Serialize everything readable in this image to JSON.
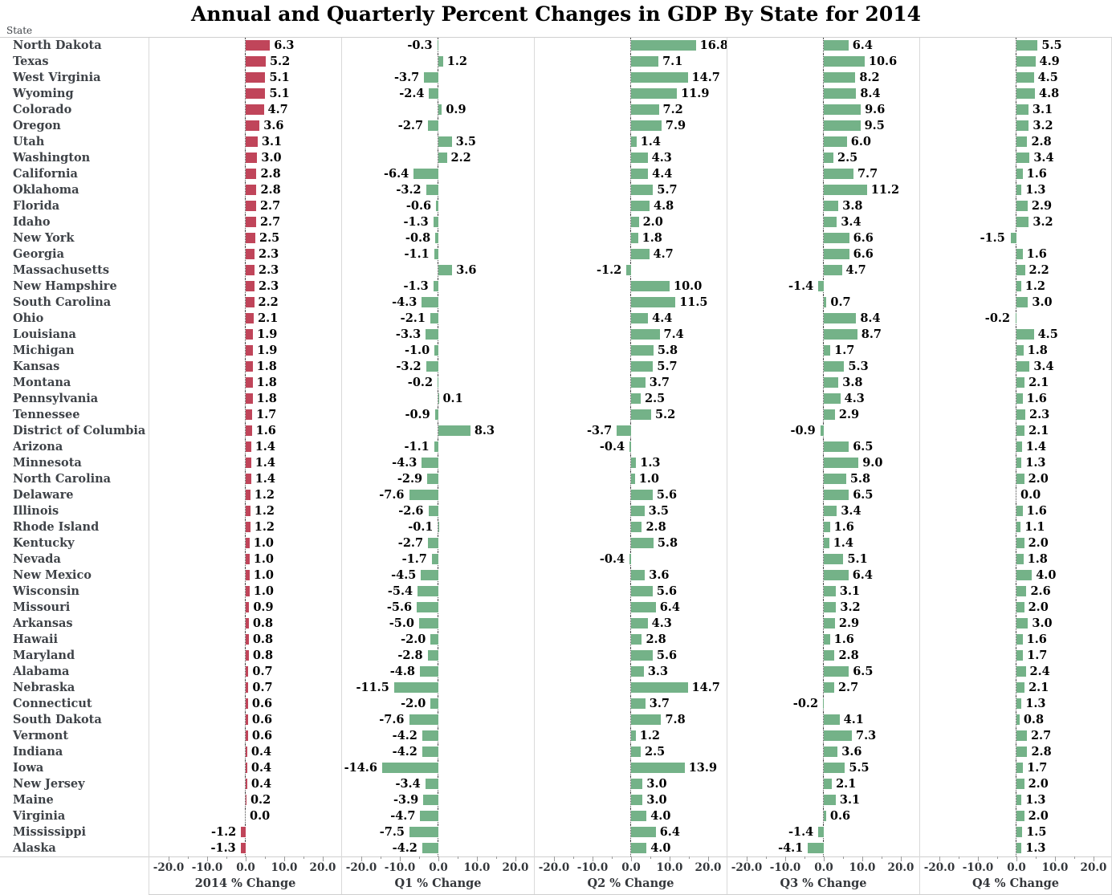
{
  "title": "Annual and Quarterly Percent Changes in GDP By State for 2014",
  "row_header": "State",
  "colors": {
    "annual_bar": "#c0455a",
    "quarterly_bar": "#74b288",
    "grid_line": "#d9d9d9",
    "zero_line": "#4a4a4a"
  },
  "panels": [
    {
      "caption": "2014 % Change"
    },
    {
      "caption": "Q1 % Change"
    },
    {
      "caption": "Q2 % Change"
    },
    {
      "caption": "Q3 % Change"
    },
    {
      "caption": "Q4 % Change"
    }
  ],
  "axis": {
    "tick_labels": [
      "-20.0",
      "-10.0",
      "0.0",
      "10.0",
      "20.0"
    ],
    "major_ticks": [
      -20,
      -10,
      0,
      10,
      20
    ],
    "minor_ticks": [
      -15,
      -5,
      5,
      15
    ],
    "min": -25,
    "max": 25
  },
  "chart_data": {
    "type": "bar",
    "orientation": "horizontal",
    "title": "Annual and Quarterly Percent Changes in GDP By State for 2014",
    "xlabel": "% Change",
    "ylabel": "State",
    "xlim": [
      -25,
      25
    ],
    "grid": false,
    "categories": [
      "North Dakota",
      "Texas",
      "West Virginia",
      "Wyoming",
      "Colorado",
      "Oregon",
      "Utah",
      "Washington",
      "California",
      "Oklahoma",
      "Florida",
      "Idaho",
      "New York",
      "Georgia",
      "Massachusetts",
      "New Hampshire",
      "South Carolina",
      "Ohio",
      "Louisiana",
      "Michigan",
      "Kansas",
      "Montana",
      "Pennsylvania",
      "Tennessee",
      "District of Columbia",
      "Arizona",
      "Minnesota",
      "North Carolina",
      "Delaware",
      "Illinois",
      "Rhode Island",
      "Kentucky",
      "Nevada",
      "New Mexico",
      "Wisconsin",
      "Missouri",
      "Arkansas",
      "Hawaii",
      "Maryland",
      "Alabama",
      "Nebraska",
      "Connecticut",
      "South Dakota",
      "Vermont",
      "Indiana",
      "Iowa",
      "New Jersey",
      "Maine",
      "Virginia",
      "Mississippi",
      "Alaska"
    ],
    "series": [
      {
        "name": "2014 % Change",
        "values": [
          6.3,
          5.2,
          5.1,
          5.1,
          4.7,
          3.6,
          3.1,
          3.0,
          2.8,
          2.8,
          2.7,
          2.7,
          2.5,
          2.3,
          2.3,
          2.3,
          2.2,
          2.1,
          1.9,
          1.9,
          1.8,
          1.8,
          1.8,
          1.7,
          1.6,
          1.4,
          1.4,
          1.4,
          1.2,
          1.2,
          1.2,
          1.0,
          1.0,
          1.0,
          1.0,
          0.9,
          0.8,
          0.8,
          0.8,
          0.7,
          0.7,
          0.6,
          0.6,
          0.6,
          0.4,
          0.4,
          0.4,
          0.2,
          0.0,
          -1.2,
          -1.3
        ]
      },
      {
        "name": "Q1 % Change",
        "values": [
          -0.3,
          1.2,
          -3.7,
          -2.4,
          0.9,
          -2.7,
          3.5,
          2.2,
          -6.4,
          -3.2,
          -0.6,
          -1.3,
          -0.8,
          -1.1,
          3.6,
          -1.3,
          -4.3,
          -2.1,
          -3.3,
          -1.0,
          -3.2,
          -0.2,
          0.1,
          -0.9,
          8.3,
          -1.1,
          -4.3,
          -2.9,
          -7.6,
          -2.6,
          -0.1,
          -2.7,
          -1.7,
          -4.5,
          -5.4,
          -5.6,
          -5.0,
          -2.0,
          -2.8,
          -4.8,
          -11.5,
          -2.0,
          -7.6,
          -4.2,
          -4.2,
          -14.6,
          -3.4,
          -3.9,
          -4.7,
          -7.5,
          -4.2
        ]
      },
      {
        "name": "Q2 % Change",
        "values": [
          16.8,
          7.1,
          14.7,
          11.9,
          7.2,
          7.9,
          1.4,
          4.3,
          4.4,
          5.7,
          4.8,
          2.0,
          1.8,
          4.7,
          -1.2,
          10.0,
          11.5,
          4.4,
          7.4,
          5.8,
          5.7,
          3.7,
          2.5,
          5.2,
          -3.7,
          -0.4,
          1.3,
          1.0,
          5.6,
          3.5,
          2.8,
          5.8,
          -0.4,
          3.6,
          5.6,
          6.4,
          4.3,
          2.8,
          5.6,
          3.3,
          14.7,
          3.7,
          7.8,
          1.2,
          2.5,
          13.9,
          3.0,
          3.0,
          4.0,
          6.4,
          4.0
        ]
      },
      {
        "name": "Q3 % Change",
        "values": [
          6.4,
          10.6,
          8.2,
          8.4,
          9.6,
          9.5,
          6.0,
          2.5,
          7.7,
          11.2,
          3.8,
          3.4,
          6.6,
          6.6,
          4.7,
          -1.4,
          0.7,
          8.4,
          8.7,
          1.7,
          5.3,
          3.8,
          4.3,
          2.9,
          -0.9,
          6.5,
          9.0,
          5.8,
          6.5,
          3.4,
          1.6,
          1.4,
          5.1,
          6.4,
          3.1,
          3.2,
          2.9,
          1.6,
          2.8,
          6.5,
          2.7,
          -0.2,
          4.1,
          7.3,
          3.6,
          5.5,
          2.1,
          3.1,
          0.6,
          -1.4,
          -4.1
        ]
      },
      {
        "name": "Q4 % Change",
        "values": [
          5.5,
          4.9,
          4.5,
          4.8,
          3.1,
          3.2,
          2.8,
          3.4,
          1.6,
          1.3,
          2.9,
          3.2,
          -1.5,
          1.6,
          2.2,
          1.2,
          3.0,
          -0.2,
          4.5,
          1.8,
          3.4,
          2.1,
          1.6,
          2.3,
          2.1,
          1.4,
          1.3,
          2.0,
          0.0,
          1.6,
          1.1,
          2.0,
          1.8,
          4.0,
          2.6,
          2.0,
          3.0,
          1.6,
          1.7,
          2.4,
          2.1,
          1.3,
          0.8,
          2.7,
          2.8,
          1.7,
          2.0,
          1.3,
          2.0,
          1.5,
          1.3
        ]
      }
    ]
  }
}
